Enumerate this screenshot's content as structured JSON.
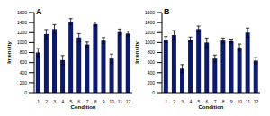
{
  "chart_data": [
    {
      "type": "bar",
      "title": "A",
      "x_label": "Condition",
      "y_label": "Intensity",
      "categories": [
        "1",
        "2",
        "3",
        "4",
        "5",
        "6",
        "7",
        "8",
        "9",
        "10",
        "11",
        "12"
      ],
      "values": [
        800,
        1170,
        1270,
        650,
        1420,
        1100,
        960,
        1370,
        1040,
        680,
        1210,
        1180
      ],
      "errors": [
        80,
        90,
        90,
        90,
        60,
        80,
        50,
        40,
        60,
        90,
        60,
        50
      ],
      "color": "#0d1a6b",
      "ylim": [
        0,
        1600
      ],
      "yticks": [
        0,
        200,
        400,
        600,
        800,
        1000,
        1200,
        1400,
        1600
      ]
    },
    {
      "type": "bar",
      "title": "B",
      "x_label": "Condition",
      "y_label": "Intensity",
      "categories": [
        "1",
        "2",
        "3",
        "4",
        "5",
        "6",
        "7",
        "8",
        "9",
        "10",
        "11",
        "12"
      ],
      "values": [
        1060,
        1150,
        480,
        1060,
        1270,
        1000,
        680,
        1040,
        1030,
        900,
        1200,
        640
      ],
      "errors": [
        60,
        90,
        80,
        50,
        60,
        90,
        70,
        50,
        40,
        70,
        90,
        60
      ],
      "color": "#0d1a6b",
      "ylim": [
        0,
        1600
      ],
      "yticks": [
        0,
        200,
        400,
        600,
        800,
        1000,
        1200,
        1400,
        1600
      ]
    }
  ]
}
